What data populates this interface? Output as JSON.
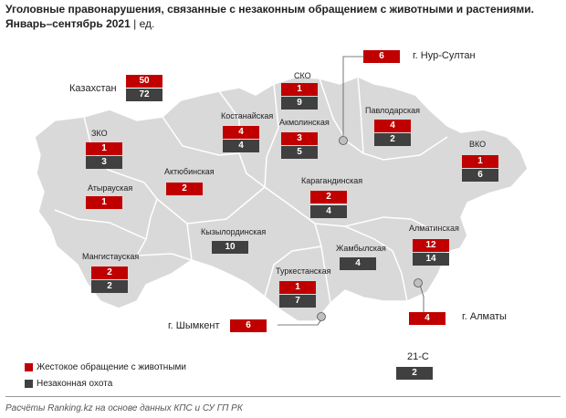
{
  "header": {
    "title": "Уголовные правонарушения, связанные с незаконным обращением с животными и растениями.",
    "period": "Январь–сентябрь 2021",
    "unit": "| ед."
  },
  "colors": {
    "cruelty": "#c00000",
    "hunting": "#404040",
    "map_fill": "#d9d9d9",
    "border": "#ffffff"
  },
  "regions": {
    "kazakhstan": {
      "name": "Казахстан",
      "cruelty": "50",
      "hunting": "72"
    },
    "sko": {
      "name": "СКО",
      "cruelty": "1",
      "hunting": "9"
    },
    "nur_sultan": {
      "name": "г. Нур-Султан",
      "cruelty": "6"
    },
    "kostanay": {
      "name": "Костанайская",
      "cruelty": "4",
      "hunting": "4"
    },
    "akmola": {
      "name": "Акмолинская",
      "cruelty": "3",
      "hunting": "5"
    },
    "pavlodar": {
      "name": "Павлодарская",
      "cruelty": "4",
      "hunting": "2"
    },
    "zko": {
      "name": "ЗКО",
      "cruelty": "1",
      "hunting": "3"
    },
    "vko": {
      "name": "ВКО",
      "cruelty": "1",
      "hunting": "6"
    },
    "aktobe": {
      "name": "Актюбинская",
      "cruelty": "2"
    },
    "atyrau": {
      "name": "Атырауская",
      "cruelty": "1"
    },
    "karaganda": {
      "name": "Карагандинская",
      "cruelty": "2",
      "hunting": "4"
    },
    "kyzylorda": {
      "name": "Кызылординская",
      "hunting": "10"
    },
    "almaty_reg": {
      "name": "Алматинская",
      "cruelty": "12",
      "hunting": "14"
    },
    "mangystau": {
      "name": "Мангистауская",
      "cruelty": "2",
      "hunting": "2"
    },
    "zhambyl": {
      "name": "Жамбылская",
      "hunting": "4"
    },
    "turkestan": {
      "name": "Туркестанская",
      "cruelty": "1",
      "hunting": "7"
    },
    "shymkent": {
      "name": "г. Шымкент",
      "cruelty": "6"
    },
    "almaty_city": {
      "name": "г. Алматы",
      "cruelty": "4"
    },
    "art21c": {
      "name": "21-С",
      "hunting": "2"
    }
  },
  "legend": {
    "cruelty": "Жестокое обращение с животными",
    "hunting": "Незаконная охота"
  },
  "footer": "Расчёты Ranking.kz на основе данных КПС и СУ ГП РК"
}
